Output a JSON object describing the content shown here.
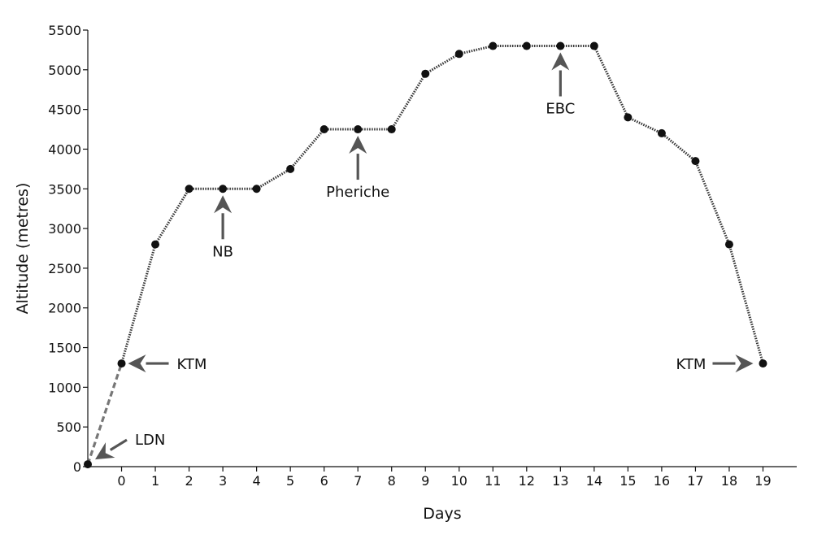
{
  "chart_data": {
    "type": "line",
    "title": "",
    "xlabel": "Days",
    "ylabel": "Altitude (metres)",
    "xlim": [
      -1,
      20
    ],
    "ylim": [
      0,
      5500
    ],
    "x_ticks": [
      0,
      1,
      2,
      3,
      4,
      5,
      6,
      7,
      8,
      9,
      10,
      11,
      12,
      13,
      14,
      15,
      16,
      17,
      18,
      19
    ],
    "y_ticks": [
      0,
      500,
      1000,
      1500,
      2000,
      2500,
      3000,
      3500,
      4000,
      4500,
      5000,
      5500
    ],
    "grid": false,
    "series": [
      {
        "line_style": "dashed",
        "color": "#777777",
        "x": [
          -1,
          0
        ],
        "y": [
          30,
          1300
        ]
      },
      {
        "line_style": "dotted",
        "color": "#333333",
        "x": [
          0,
          1,
          2,
          3,
          4,
          5,
          6,
          7,
          8,
          9,
          10,
          11,
          12,
          13,
          14,
          15,
          16,
          17,
          18,
          19
        ],
        "y": [
          1300,
          2800,
          3500,
          3500,
          3500,
          3750,
          4250,
          4250,
          4250,
          4950,
          5200,
          5300,
          5300,
          5300,
          5300,
          4400,
          4200,
          3850,
          2800,
          1300
        ]
      }
    ],
    "marker_color": "#111111",
    "arrow_color": "#555555",
    "annotations": [
      {
        "text": "LDN",
        "x": -1,
        "y": 30,
        "direction": "from-upper-right"
      },
      {
        "text": "KTM",
        "x": 0,
        "y": 1300,
        "direction": "from-right"
      },
      {
        "text": "NB",
        "x": 3,
        "y": 3500,
        "direction": "from-below"
      },
      {
        "text": "Pheriche",
        "x": 7,
        "y": 4250,
        "direction": "from-below"
      },
      {
        "text": "EBC",
        "x": 13,
        "y": 5300,
        "direction": "from-below"
      },
      {
        "text": "KTM",
        "x": 19,
        "y": 1300,
        "direction": "from-left"
      }
    ]
  }
}
